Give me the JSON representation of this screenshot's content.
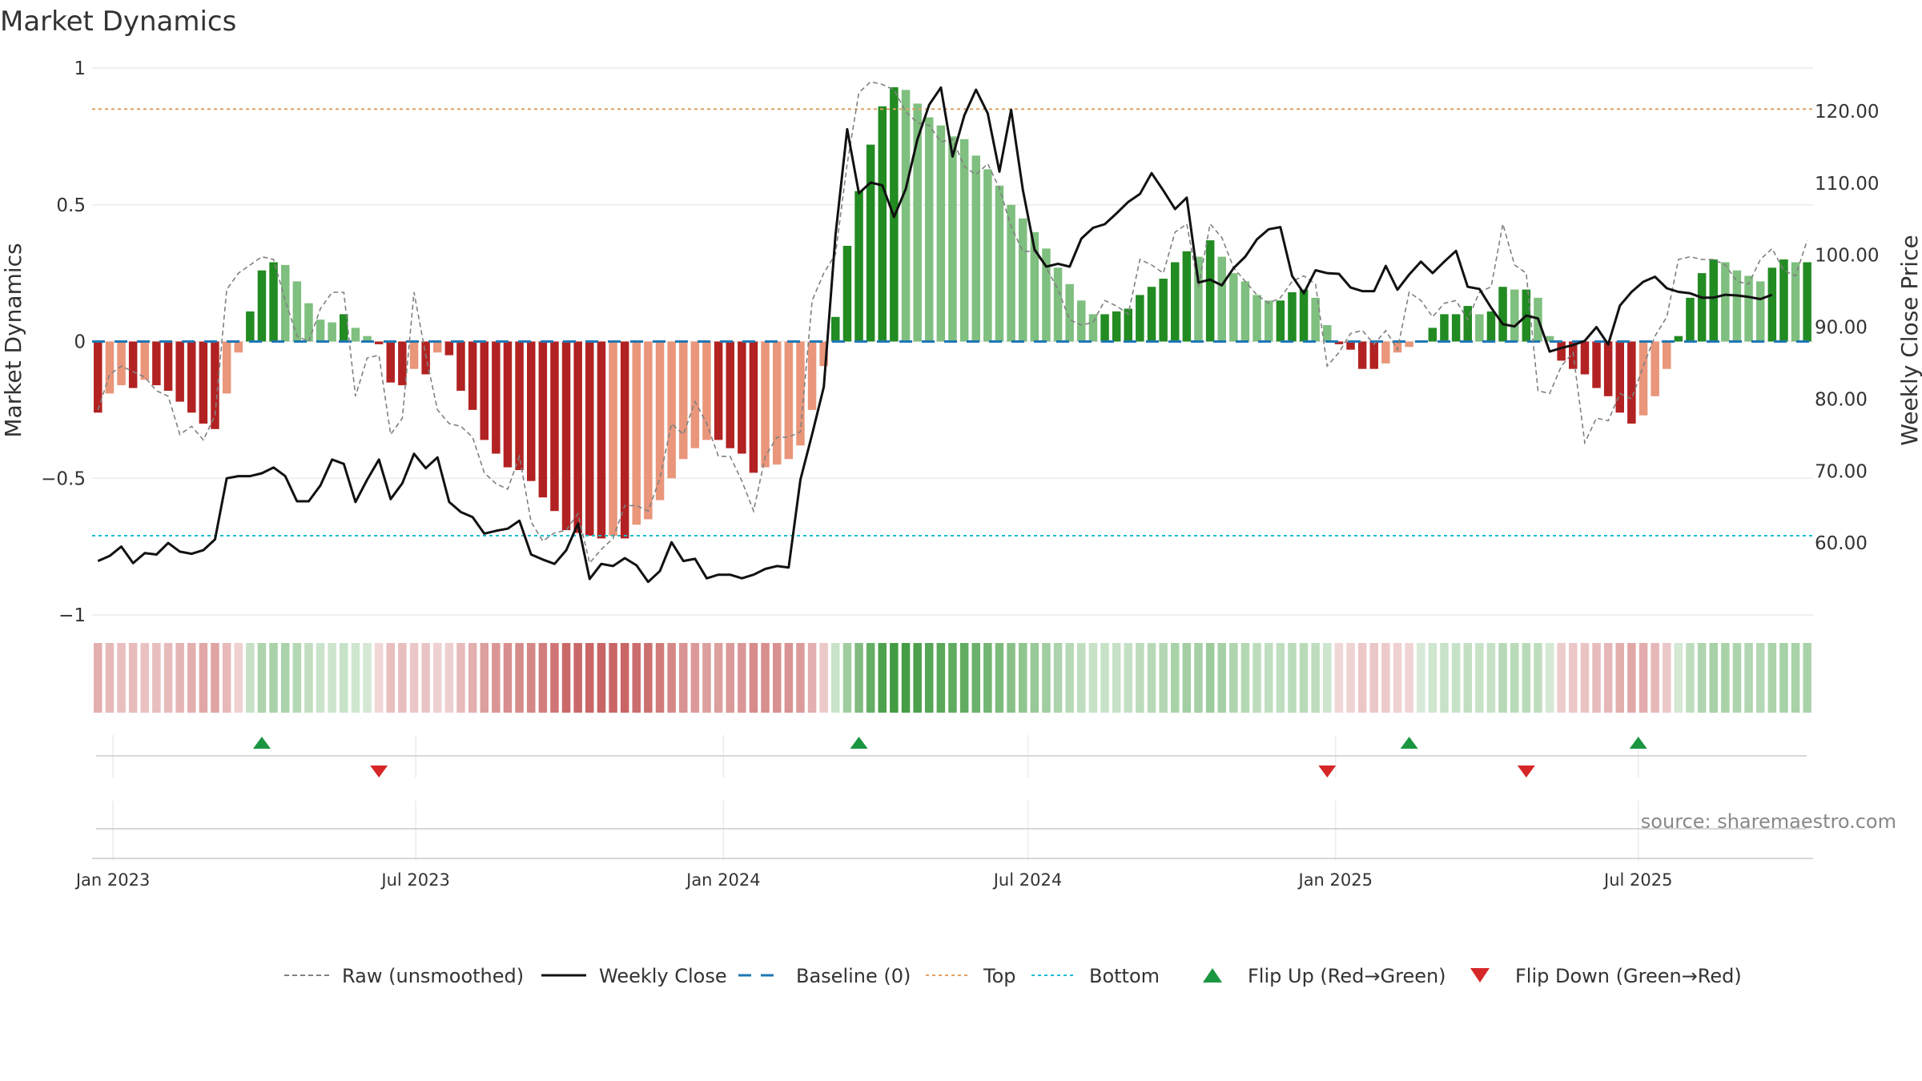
{
  "chart_data": {
    "type": "bar",
    "title": "Market Dynamics",
    "ylabel": "Market Dynamics",
    "y2label": "Weekly Close Price",
    "ylim": [
      -1,
      1
    ],
    "y2lim": [
      50,
      126
    ],
    "yticks": [
      {
        "v": 1,
        "label": "1"
      },
      {
        "v": 0.5,
        "label": "0.5"
      },
      {
        "v": 0,
        "label": "0"
      },
      {
        "v": -0.5,
        "label": "−0.5"
      },
      {
        "v": -1,
        "label": "−1"
      }
    ],
    "y2ticks": [
      {
        "v": 120,
        "label": "120.00"
      },
      {
        "v": 110,
        "label": "110.00"
      },
      {
        "v": 100,
        "label": "100.00"
      },
      {
        "v": 90,
        "label": "90.00"
      },
      {
        "v": 80,
        "label": "80.00"
      },
      {
        "v": 70,
        "label": "70.00"
      },
      {
        "v": 60,
        "label": "60.00"
      }
    ],
    "x_start": "2022-12-23",
    "x_step_days": 7,
    "xticks": [
      {
        "date": "2023-01-01",
        "label": "Jan 2023"
      },
      {
        "date": "2023-07-01",
        "label": "Jul 2023"
      },
      {
        "date": "2024-01-01",
        "label": "Jan 2024"
      },
      {
        "date": "2024-07-01",
        "label": "Jul 2024"
      },
      {
        "date": "2025-01-01",
        "label": "Jan 2025"
      },
      {
        "date": "2025-07-01",
        "label": "Jul 2025"
      }
    ],
    "top_level": 0.85,
    "bottom_level": -0.71,
    "grid": true,
    "legend_position": "bottom",
    "values": [
      -0.26,
      -0.19,
      -0.16,
      -0.17,
      -0.14,
      -0.16,
      -0.18,
      -0.22,
      -0.26,
      -0.3,
      -0.32,
      -0.19,
      -0.04,
      0.11,
      0.26,
      0.29,
      0.28,
      0.22,
      0.14,
      0.08,
      0.07,
      0.1,
      0.05,
      0.02,
      -0.01,
      -0.15,
      -0.16,
      -0.1,
      -0.12,
      -0.04,
      -0.05,
      -0.18,
      -0.25,
      -0.36,
      -0.41,
      -0.46,
      -0.47,
      -0.51,
      -0.57,
      -0.62,
      -0.69,
      -0.7,
      -0.71,
      -0.72,
      -0.71,
      -0.72,
      -0.67,
      -0.65,
      -0.58,
      -0.5,
      -0.43,
      -0.39,
      -0.36,
      -0.36,
      -0.39,
      -0.41,
      -0.48,
      -0.46,
      -0.45,
      -0.43,
      -0.38,
      -0.25,
      -0.09,
      0.09,
      0.35,
      0.55,
      0.72,
      0.86,
      0.93,
      0.92,
      0.87,
      0.82,
      0.79,
      0.75,
      0.74,
      0.68,
      0.63,
      0.57,
      0.5,
      0.45,
      0.4,
      0.34,
      0.27,
      0.21,
      0.15,
      0.1,
      0.1,
      0.11,
      0.12,
      0.17,
      0.2,
      0.23,
      0.29,
      0.33,
      0.31,
      0.37,
      0.31,
      0.25,
      0.22,
      0.17,
      0.15,
      0.15,
      0.18,
      0.19,
      0.16,
      0.06,
      -0.01,
      -0.03,
      -0.1,
      -0.1,
      -0.08,
      -0.04,
      -0.02,
      0.0,
      0.05,
      0.1,
      0.1,
      0.13,
      0.1,
      0.11,
      0.2,
      0.19,
      0.19,
      0.16,
      0.02,
      -0.07,
      -0.1,
      -0.12,
      -0.17,
      -0.2,
      -0.26,
      -0.3,
      -0.27,
      -0.2,
      -0.1,
      0.02,
      0.16,
      0.25,
      0.3,
      0.29,
      0.26,
      0.24,
      0.22,
      0.27,
      0.3,
      0.29,
      0.29
    ],
    "series": [
      {
        "name": "Raw (unsmoothed)",
        "values": [
          -0.25,
          -0.12,
          -0.09,
          -0.11,
          -0.13,
          -0.18,
          -0.2,
          -0.34,
          -0.31,
          -0.36,
          -0.27,
          0.19,
          0.25,
          0.28,
          0.31,
          0.3,
          0.15,
          0.02,
          0.0,
          0.12,
          0.18,
          0.18,
          -0.2,
          -0.06,
          -0.05,
          -0.34,
          -0.28,
          0.18,
          -0.05,
          -0.25,
          -0.3,
          -0.31,
          -0.35,
          -0.48,
          -0.52,
          -0.54,
          -0.42,
          -0.66,
          -0.73,
          -0.7,
          -0.69,
          -0.63,
          -0.81,
          -0.76,
          -0.72,
          -0.6,
          -0.6,
          -0.62,
          -0.5,
          -0.3,
          -0.34,
          -0.22,
          -0.3,
          -0.42,
          -0.42,
          -0.51,
          -0.62,
          -0.42,
          -0.35,
          -0.35,
          -0.33,
          0.15,
          0.25,
          0.32,
          0.65,
          0.91,
          0.95,
          0.94,
          0.92,
          0.84,
          0.8,
          0.79,
          0.73,
          0.74,
          0.64,
          0.61,
          0.65,
          0.56,
          0.42,
          0.33,
          0.33,
          0.27,
          0.19,
          0.08,
          0.06,
          0.07,
          0.15,
          0.13,
          0.1,
          0.3,
          0.28,
          0.25,
          0.4,
          0.43,
          0.2,
          0.43,
          0.38,
          0.27,
          0.22,
          0.17,
          0.14,
          0.16,
          0.22,
          0.24,
          0.21,
          -0.09,
          -0.04,
          0.03,
          0.04,
          -0.01,
          0.04,
          -0.03,
          0.18,
          0.15,
          0.09,
          0.14,
          0.15,
          0.08,
          0.18,
          0.2,
          0.43,
          0.28,
          0.25,
          -0.18,
          -0.19,
          -0.09,
          -0.04,
          -0.37,
          -0.28,
          -0.29,
          -0.19,
          -0.21,
          -0.09,
          0.02,
          0.09,
          0.3,
          0.31,
          0.3,
          0.3,
          0.28,
          0.22,
          0.21,
          0.3,
          0.34,
          0.26,
          0.24,
          0.37
        ]
      },
      {
        "name": "Weekly Close",
        "values": [
          57.5,
          58.2,
          59.5,
          57.2,
          58.6,
          58.4,
          60.0,
          58.8,
          58.5,
          59.0,
          60.5,
          69.0,
          69.3,
          69.3,
          69.7,
          70.5,
          69.3,
          65.8,
          65.8,
          68.0,
          71.6,
          71.0,
          65.7,
          68.8,
          71.6,
          66.1,
          68.3,
          72.4,
          70.4,
          71.9,
          65.7,
          64.3,
          63.6,
          61.3,
          61.7,
          62.0,
          63.1,
          58.4,
          57.7,
          57.1,
          59.0,
          62.7,
          55.0,
          57.1,
          56.8,
          57.9,
          56.9,
          54.6,
          56.1,
          60.1,
          57.5,
          57.8,
          55.1,
          55.6,
          55.6,
          55.1,
          55.6,
          56.4,
          56.8,
          56.6,
          68.8,
          75.1,
          81.7,
          102.8,
          117.5,
          108.6,
          110.1,
          109.7,
          105.3,
          109.2,
          116.1,
          120.9,
          123.3,
          113.7,
          119.4,
          123.0,
          119.7,
          111.6,
          120.2,
          109.1,
          100.8,
          98.4,
          98.8,
          98.4,
          102.3,
          103.8,
          104.3,
          105.8,
          107.4,
          108.5,
          111.4,
          109.0,
          106.4,
          108.0,
          96.2,
          96.6,
          95.8,
          98.2,
          99.8,
          102.2,
          103.6,
          103.9,
          97.1,
          94.7,
          97.9,
          97.5,
          97.4,
          95.5,
          95.0,
          95.0,
          98.5,
          95.2,
          97.3,
          99.1,
          97.5,
          99.1,
          100.6,
          95.6,
          95.3,
          92.7,
          90.4,
          90.1,
          91.6,
          91.2,
          86.6,
          87.1,
          87.5,
          88.1,
          90.0,
          87.6,
          93.0,
          94.9,
          96.3,
          97.0,
          95.4,
          94.9,
          94.7,
          94.1,
          94.1,
          94.5,
          94.4,
          94.2,
          93.9,
          94.5
        ]
      }
    ],
    "strip_levels": [
      -0.26,
      -0.19,
      -0.16,
      -0.17,
      -0.14,
      -0.16,
      -0.18,
      -0.22,
      -0.26,
      -0.3,
      -0.32,
      -0.19,
      -0.04,
      0.11,
      0.26,
      0.29,
      0.28,
      0.22,
      0.14,
      0.08,
      0.07,
      0.1,
      0.05,
      0.02,
      -0.01,
      -0.15,
      -0.16,
      -0.1,
      -0.12,
      -0.04,
      -0.05,
      -0.18,
      -0.25,
      -0.36,
      -0.41,
      -0.46,
      -0.47,
      -0.51,
      -0.57,
      -0.62,
      -0.69,
      -0.7,
      -0.71,
      -0.72,
      -0.71,
      -0.72,
      -0.67,
      -0.65,
      -0.58,
      -0.5,
      -0.43,
      -0.39,
      -0.36,
      -0.36,
      -0.39,
      -0.41,
      -0.48,
      -0.46,
      -0.45,
      -0.43,
      -0.38,
      -0.25,
      -0.09,
      0.09,
      0.35,
      0.55,
      0.72,
      0.86,
      0.93,
      0.92,
      0.87,
      0.82,
      0.79,
      0.75,
      0.74,
      0.68,
      0.63,
      0.57,
      0.5,
      0.45,
      0.4,
      0.34,
      0.27,
      0.21,
      0.15,
      0.1,
      0.1,
      0.11,
      0.12,
      0.17,
      0.2,
      0.23,
      0.29,
      0.33,
      0.31,
      0.37,
      0.31,
      0.25,
      0.22,
      0.17,
      0.15,
      0.15,
      0.18,
      0.19,
      0.16,
      0.06,
      -0.01,
      -0.03,
      -0.1,
      -0.1,
      -0.08,
      -0.04,
      -0.02,
      0.0,
      0.05,
      0.1,
      0.1,
      0.13,
      0.1,
      0.11,
      0.2,
      0.19,
      0.19,
      0.16,
      0.02,
      -0.07,
      -0.1,
      -0.12,
      -0.17,
      -0.2,
      -0.26,
      -0.3,
      -0.27,
      -0.2,
      -0.1,
      0.02,
      0.16,
      0.25,
      0.3,
      0.29,
      0.26,
      0.24,
      0.22,
      0.27,
      0.3,
      0.29,
      0.29
    ],
    "flips": [
      {
        "type": "up",
        "date": "2023-03-31"
      },
      {
        "type": "down",
        "date": "2023-06-09"
      },
      {
        "type": "up",
        "date": "2024-03-22"
      },
      {
        "type": "down",
        "date": "2024-12-27"
      },
      {
        "type": "up",
        "date": "2025-02-14"
      },
      {
        "type": "down",
        "date": "2025-04-25"
      },
      {
        "type": "up",
        "date": "2025-07-01"
      }
    ],
    "legend": [
      {
        "key": "raw",
        "label": "Raw (unsmoothed)"
      },
      {
        "key": "close",
        "label": "Weekly Close"
      },
      {
        "key": "baseline",
        "label": "Baseline (0)"
      },
      {
        "key": "top",
        "label": "Top"
      },
      {
        "key": "bottom",
        "label": "Bottom"
      },
      {
        "key": "flipup",
        "label": "Flip Up (Red→Green)"
      },
      {
        "key": "flipdown",
        "label": "Flip Down (Green→Red)"
      }
    ],
    "source": "source: sharemaestro.com",
    "colors": {
      "pos_strong": "#228b22",
      "pos_weak": "#7fbf7f",
      "neg_strong": "#b22222",
      "neg_weak": "#e9967a",
      "raw": "#808080",
      "close": "#111111",
      "baseline": "#1f77b4",
      "top": "#e0a060",
      "bottom": "#17becf",
      "flip_up": "#1a9641",
      "flip_down": "#d62728"
    }
  }
}
